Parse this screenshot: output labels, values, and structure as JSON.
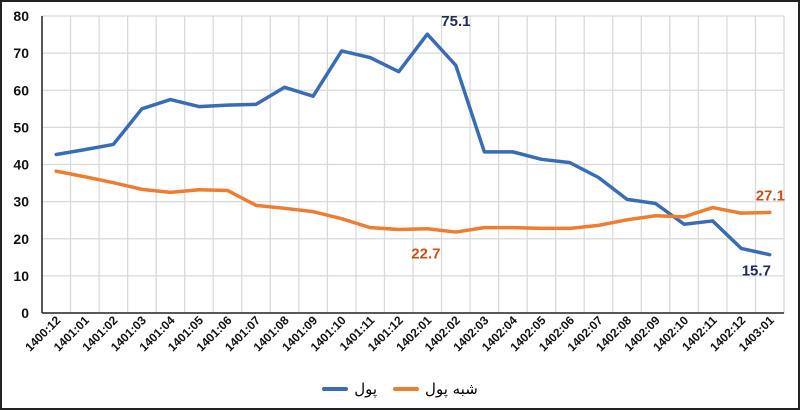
{
  "chart_data": {
    "type": "line",
    "categories": [
      "1400:12",
      "1401:01",
      "1401:02",
      "1401:03",
      "1401:04",
      "1401:05",
      "1401:06",
      "1401:07",
      "1401:08",
      "1401:09",
      "1401:10",
      "1401:11",
      "1401:12",
      "1402:01",
      "1402:02",
      "1402:03",
      "1402:04",
      "1402:05",
      "1402:06",
      "1402:07",
      "1402:08",
      "1402:09",
      "1402:10",
      "1402:11",
      "1402:12",
      "1403:01"
    ],
    "series": [
      {
        "name": "پول",
        "color": "#3a6bb5",
        "values": [
          42.7,
          44.0,
          45.4,
          55.0,
          57.5,
          55.6,
          56.0,
          56.2,
          60.8,
          58.4,
          70.6,
          68.8,
          65.0,
          75.1,
          66.7,
          43.4,
          43.4,
          41.4,
          40.5,
          36.5,
          30.6,
          29.5,
          23.9,
          24.8,
          17.4,
          15.7
        ],
        "label_color": "#1f2a55"
      },
      {
        "name": "شبه پول",
        "color": "#ed7d31",
        "values": [
          38.2,
          36.7,
          35.1,
          33.3,
          32.5,
          33.2,
          33.0,
          29.0,
          28.2,
          27.3,
          25.4,
          23.0,
          22.5,
          22.7,
          21.8,
          23.0,
          23.0,
          22.8,
          22.8,
          23.6,
          25.1,
          26.2,
          25.9,
          28.4,
          26.9,
          27.1
        ],
        "label_color": "#c5501a"
      }
    ],
    "data_labels": [
      {
        "series": 0,
        "index": 13,
        "text": "75.1"
      },
      {
        "series": 0,
        "index": 25,
        "text": "15.7"
      },
      {
        "series": 1,
        "index": 13,
        "text": "22.7"
      },
      {
        "series": 1,
        "index": 25,
        "text": "27.1"
      }
    ],
    "ylim": [
      0,
      80
    ],
    "yticks": [
      "0",
      "10",
      "20",
      "30",
      "40",
      "50",
      "60",
      "70",
      "80"
    ],
    "grid": true,
    "legend_position": "bottom"
  }
}
